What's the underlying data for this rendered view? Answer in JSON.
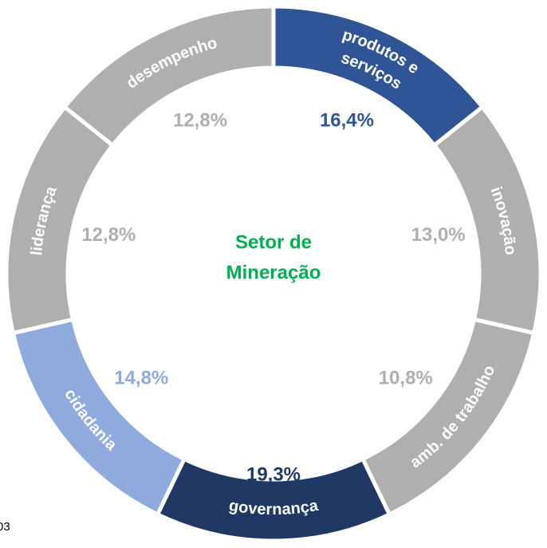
{
  "chart_data": {
    "type": "donut",
    "title": [
      "Setor de",
      "Mineração"
    ],
    "categories": [
      [
        "produtos e",
        "serviços"
      ],
      [
        "inovação"
      ],
      [
        "amb. de trabalho"
      ],
      [
        "governança"
      ],
      [
        "cidadania"
      ],
      [
        "liderança"
      ],
      [
        "desempenho"
      ]
    ],
    "values": [
      16.4,
      13.0,
      10.8,
      19.3,
      14.8,
      12.8,
      12.8
    ],
    "value_labels": [
      "16,4%",
      "13,0%",
      "10,8%",
      "19,3%",
      "14,8%",
      "12,8%",
      "12,8%"
    ],
    "colors": [
      "#2f5597",
      "#afafaf",
      "#afafaf",
      "#1f3864",
      "#8faadc",
      "#afafaf",
      "#afafaf"
    ],
    "title_color": "#00b050"
  },
  "page_number": "03"
}
